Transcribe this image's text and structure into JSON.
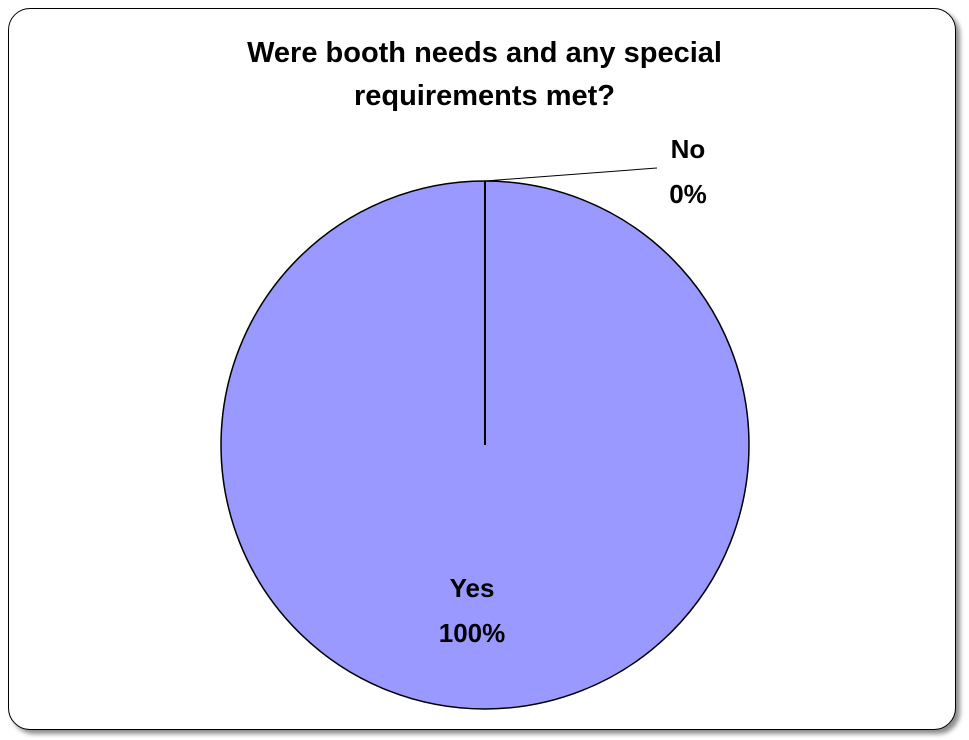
{
  "chart_data": {
    "type": "pie",
    "title_lines": [
      "Were booth needs and any special",
      "requirements met?"
    ],
    "slices": [
      {
        "label": "Yes",
        "value": 100,
        "percent_label": "100%",
        "color": "#9999ff"
      },
      {
        "label": "No",
        "value": 0,
        "percent_label": "0%",
        "color": "#9999ff"
      }
    ]
  }
}
